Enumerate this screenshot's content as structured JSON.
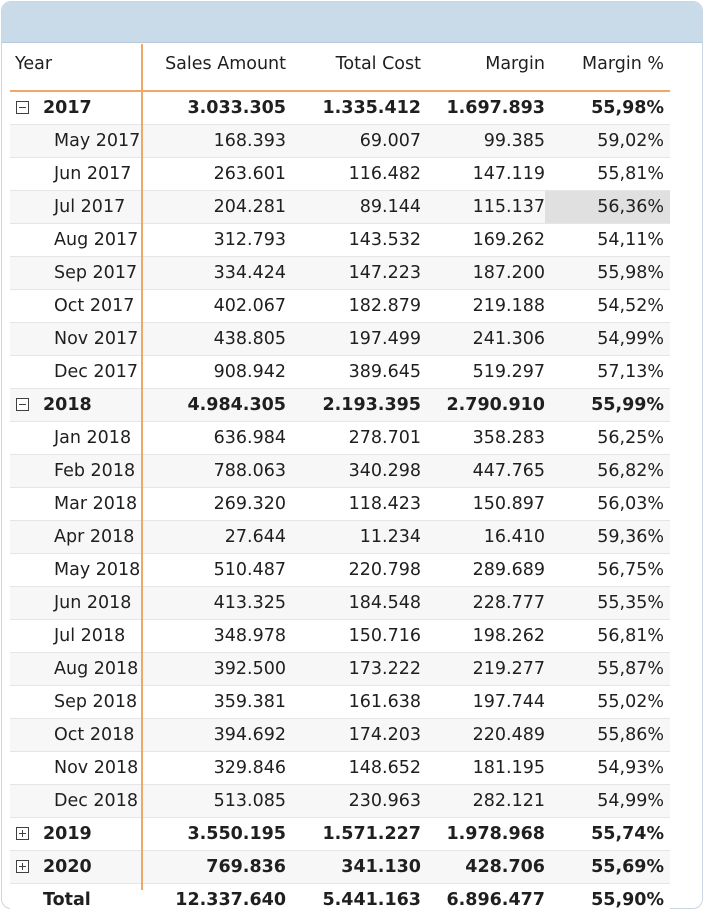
{
  "matrix": {
    "headers": {
      "year": "Year",
      "sales": "Sales Amount",
      "cost": "Total Cost",
      "margin": "Margin",
      "pct": "Margin %"
    },
    "rows": [
      {
        "kind": "group",
        "expanded": true,
        "label": "2017",
        "sales": "3.033.305",
        "cost": "1.335.412",
        "margin": "1.697.893",
        "pct": "55,98%"
      },
      {
        "kind": "month",
        "label": "May 2017",
        "sales": "168.393",
        "cost": "69.007",
        "margin": "99.385",
        "pct": "59,02%"
      },
      {
        "kind": "month",
        "label": "Jun 2017",
        "sales": "263.601",
        "cost": "116.482",
        "margin": "147.119",
        "pct": "55,81%"
      },
      {
        "kind": "month",
        "label": "Jul 2017",
        "sales": "204.281",
        "cost": "89.144",
        "margin": "115.137",
        "pct": "56,36%",
        "highlight": true
      },
      {
        "kind": "month",
        "label": "Aug 2017",
        "sales": "312.793",
        "cost": "143.532",
        "margin": "169.262",
        "pct": "54,11%"
      },
      {
        "kind": "month",
        "label": "Sep 2017",
        "sales": "334.424",
        "cost": "147.223",
        "margin": "187.200",
        "pct": "55,98%"
      },
      {
        "kind": "month",
        "label": "Oct 2017",
        "sales": "402.067",
        "cost": "182.879",
        "margin": "219.188",
        "pct": "54,52%"
      },
      {
        "kind": "month",
        "label": "Nov 2017",
        "sales": "438.805",
        "cost": "197.499",
        "margin": "241.306",
        "pct": "54,99%"
      },
      {
        "kind": "month",
        "label": "Dec 2017",
        "sales": "908.942",
        "cost": "389.645",
        "margin": "519.297",
        "pct": "57,13%"
      },
      {
        "kind": "group",
        "expanded": true,
        "label": "2018",
        "sales": "4.984.305",
        "cost": "2.193.395",
        "margin": "2.790.910",
        "pct": "55,99%"
      },
      {
        "kind": "month",
        "label": "Jan 2018",
        "sales": "636.984",
        "cost": "278.701",
        "margin": "358.283",
        "pct": "56,25%"
      },
      {
        "kind": "month",
        "label": "Feb 2018",
        "sales": "788.063",
        "cost": "340.298",
        "margin": "447.765",
        "pct": "56,82%"
      },
      {
        "kind": "month",
        "label": "Mar 2018",
        "sales": "269.320",
        "cost": "118.423",
        "margin": "150.897",
        "pct": "56,03%"
      },
      {
        "kind": "month",
        "label": "Apr 2018",
        "sales": "27.644",
        "cost": "11.234",
        "margin": "16.410",
        "pct": "59,36%"
      },
      {
        "kind": "month",
        "label": "May 2018",
        "sales": "510.487",
        "cost": "220.798",
        "margin": "289.689",
        "pct": "56,75%"
      },
      {
        "kind": "month",
        "label": "Jun 2018",
        "sales": "413.325",
        "cost": "184.548",
        "margin": "228.777",
        "pct": "55,35%"
      },
      {
        "kind": "month",
        "label": "Jul 2018",
        "sales": "348.978",
        "cost": "150.716",
        "margin": "198.262",
        "pct": "56,81%"
      },
      {
        "kind": "month",
        "label": "Aug 2018",
        "sales": "392.500",
        "cost": "173.222",
        "margin": "219.277",
        "pct": "55,87%"
      },
      {
        "kind": "month",
        "label": "Sep 2018",
        "sales": "359.381",
        "cost": "161.638",
        "margin": "197.744",
        "pct": "55,02%"
      },
      {
        "kind": "month",
        "label": "Oct 2018",
        "sales": "394.692",
        "cost": "174.203",
        "margin": "220.489",
        "pct": "55,86%"
      },
      {
        "kind": "month",
        "label": "Nov 2018",
        "sales": "329.846",
        "cost": "148.652",
        "margin": "181.195",
        "pct": "54,93%"
      },
      {
        "kind": "month",
        "label": "Dec 2018",
        "sales": "513.085",
        "cost": "230.963",
        "margin": "282.121",
        "pct": "54,99%"
      },
      {
        "kind": "group",
        "expanded": false,
        "label": "2019",
        "sales": "3.550.195",
        "cost": "1.571.227",
        "margin": "1.978.968",
        "pct": "55,74%"
      },
      {
        "kind": "group",
        "expanded": false,
        "label": "2020",
        "sales": "769.836",
        "cost": "341.130",
        "margin": "428.706",
        "pct": "55,69%"
      }
    ],
    "total": {
      "label": "Total",
      "sales": "12.337.640",
      "cost": "5.441.163",
      "margin": "6.896.477",
      "pct": "55,90%"
    },
    "icons": {
      "expanded": "collapse-minus-icon",
      "collapsed": "expand-plus-icon"
    },
    "colors": {
      "accent": "#f0a868",
      "header_bar": "#c9dbe8",
      "highlight": "#e0e0e0"
    }
  }
}
